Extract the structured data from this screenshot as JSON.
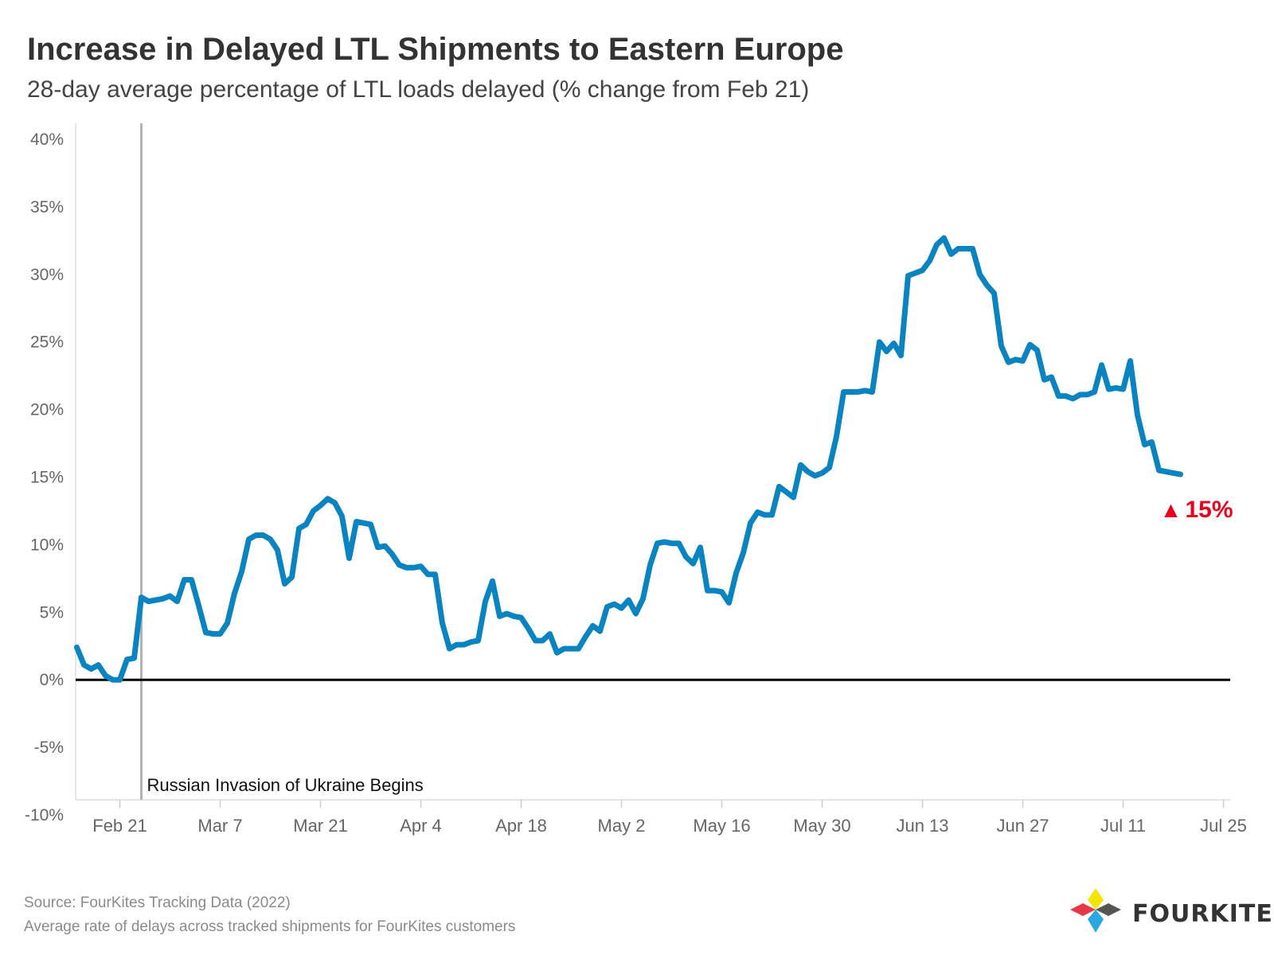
{
  "title": "Increase in Delayed LTL Shipments to Eastern Europe",
  "subtitle": "28-day average percentage of LTL loads delayed (% change from Feb 21)",
  "source_line": "Source: FourKites Tracking Data (2022)",
  "note_line": "Average rate of delays across tracked shipments for FourKites customers",
  "logo": {
    "text": "FOURKITES",
    "colors": [
      "#e63946",
      "#f2e600",
      "#555555",
      "#29a9e0"
    ]
  },
  "colors": {
    "line": "#0a84c1",
    "zero_line": "#000000",
    "event_line": "#b3b3b3",
    "callout": "#e8001c",
    "axis": "#dddddd"
  },
  "chart_data": {
    "type": "line",
    "title": "Increase in Delayed LTL Shipments to Eastern Europe",
    "subtitle": "28-day average percentage of LTL loads delayed (% change from Feb 21)",
    "x_axis_type": "date",
    "xlim": [
      "2022-02-17",
      "2022-07-26"
    ],
    "x_ticks": [
      "2022-02-21",
      "2022-03-07",
      "2022-03-21",
      "2022-04-04",
      "2022-04-18",
      "2022-05-02",
      "2022-05-16",
      "2022-05-30",
      "2022-06-13",
      "2022-06-27",
      "2022-07-11",
      "2022-07-25"
    ],
    "x_tick_labels": [
      "Feb 21",
      "Mar 7",
      "Mar 21",
      "Apr 4",
      "Apr 18",
      "May 2",
      "May 16",
      "May 30",
      "Jun 13",
      "Jun 27",
      "Jul 11",
      "Jul 25"
    ],
    "ylim": [
      -10,
      40
    ],
    "y_ticks": [
      -10,
      -5,
      0,
      5,
      10,
      15,
      20,
      25,
      30,
      35,
      40
    ],
    "y_tick_labels": [
      "-10%",
      "-5%",
      "0%",
      "5%",
      "10%",
      "15%",
      "20%",
      "25%",
      "30%",
      "35%",
      "40%"
    ],
    "grid": false,
    "series": [
      {
        "x": [
          "2022-02-15",
          "2022-02-16",
          "2022-02-17",
          "2022-02-18",
          "2022-02-19",
          "2022-02-20",
          "2022-02-21",
          "2022-02-22",
          "2022-02-23",
          "2022-02-24",
          "2022-02-25",
          "2022-02-26",
          "2022-02-27",
          "2022-02-28",
          "2022-03-01",
          "2022-03-02",
          "2022-03-03",
          "2022-03-04",
          "2022-03-05",
          "2022-03-06",
          "2022-03-07",
          "2022-03-08",
          "2022-03-09",
          "2022-03-10",
          "2022-03-11",
          "2022-03-12",
          "2022-03-13",
          "2022-03-14",
          "2022-03-15",
          "2022-03-16",
          "2022-03-17",
          "2022-03-18",
          "2022-03-19",
          "2022-03-20",
          "2022-03-21",
          "2022-03-22",
          "2022-03-23",
          "2022-03-24",
          "2022-03-25",
          "2022-03-26",
          "2022-03-27",
          "2022-03-28",
          "2022-03-29",
          "2022-03-30",
          "2022-03-31",
          "2022-04-01",
          "2022-04-02",
          "2022-04-03",
          "2022-04-04",
          "2022-04-05",
          "2022-04-06",
          "2022-04-07",
          "2022-04-08",
          "2022-04-09",
          "2022-04-10",
          "2022-04-11",
          "2022-04-12",
          "2022-04-13",
          "2022-04-14",
          "2022-04-15",
          "2022-04-16",
          "2022-04-17",
          "2022-04-18",
          "2022-04-19",
          "2022-04-20",
          "2022-04-21",
          "2022-04-22",
          "2022-04-23",
          "2022-04-24",
          "2022-04-25",
          "2022-04-26",
          "2022-04-27",
          "2022-04-28",
          "2022-04-29",
          "2022-04-30",
          "2022-05-01",
          "2022-05-02",
          "2022-05-03",
          "2022-05-04",
          "2022-05-05",
          "2022-05-06",
          "2022-05-07",
          "2022-05-08",
          "2022-05-09",
          "2022-05-10",
          "2022-05-11",
          "2022-05-12",
          "2022-05-13",
          "2022-05-14",
          "2022-05-15",
          "2022-05-16",
          "2022-05-17",
          "2022-05-18",
          "2022-05-19",
          "2022-05-20",
          "2022-05-21",
          "2022-05-22",
          "2022-05-23",
          "2022-05-24",
          "2022-05-25",
          "2022-05-26",
          "2022-05-27",
          "2022-05-28",
          "2022-05-29",
          "2022-05-30",
          "2022-05-31",
          "2022-06-01",
          "2022-06-02",
          "2022-06-03",
          "2022-06-04",
          "2022-06-05",
          "2022-06-06",
          "2022-06-07",
          "2022-06-08",
          "2022-06-09",
          "2022-06-10",
          "2022-06-11",
          "2022-06-12",
          "2022-06-13",
          "2022-06-14",
          "2022-06-15",
          "2022-06-16",
          "2022-06-17",
          "2022-06-18",
          "2022-06-19",
          "2022-06-20",
          "2022-06-21",
          "2022-06-22",
          "2022-06-23",
          "2022-06-24",
          "2022-06-25",
          "2022-06-26",
          "2022-06-27",
          "2022-06-28",
          "2022-06-29",
          "2022-06-30",
          "2022-07-01",
          "2022-07-02",
          "2022-07-03",
          "2022-07-04",
          "2022-07-05",
          "2022-07-06",
          "2022-07-07",
          "2022-07-08",
          "2022-07-09",
          "2022-07-10",
          "2022-07-11",
          "2022-07-12",
          "2022-07-13",
          "2022-07-14",
          "2022-07-15",
          "2022-07-16",
          "2022-07-17",
          "2022-07-18",
          "2022-07-19"
        ],
        "y": [
          2.4,
          1.1,
          0.8,
          1.1,
          0.3,
          0.0,
          0.0,
          1.5,
          1.6,
          6.1,
          5.8,
          5.9,
          6.0,
          6.2,
          5.8,
          7.4,
          7.4,
          5.5,
          3.5,
          3.4,
          3.4,
          4.2,
          6.4,
          8.0,
          10.4,
          10.7,
          10.7,
          10.4,
          9.6,
          7.1,
          7.6,
          11.2,
          11.5,
          12.5,
          12.9,
          13.4,
          13.1,
          12.1,
          9.0,
          11.7,
          11.6,
          11.5,
          9.8,
          9.9,
          9.3,
          8.5,
          8.3,
          8.3,
          8.4,
          7.8,
          7.8,
          4.2,
          2.3,
          2.6,
          2.6,
          2.8,
          2.9,
          5.8,
          7.3,
          4.7,
          4.9,
          4.7,
          4.6,
          3.8,
          2.9,
          2.9,
          3.4,
          2.0,
          2.3,
          2.3,
          2.3,
          3.2,
          4.0,
          3.6,
          5.4,
          5.6,
          5.3,
          5.9,
          4.9,
          6.0,
          8.5,
          10.1,
          10.2,
          10.1,
          10.1,
          9.1,
          8.6,
          9.8,
          6.6,
          6.6,
          6.5,
          5.7,
          7.9,
          9.4,
          11.6,
          12.4,
          12.2,
          12.2,
          14.3,
          13.9,
          13.5,
          15.9,
          15.4,
          15.1,
          15.3,
          15.7,
          18.0,
          21.3,
          21.3,
          21.3,
          21.4,
          21.3,
          25.0,
          24.3,
          24.9,
          24.0,
          29.9,
          30.1,
          30.3,
          31.0,
          32.2,
          32.7,
          31.5,
          31.9,
          31.9,
          31.9,
          30.0,
          29.2,
          28.6,
          24.7,
          23.5,
          23.7,
          23.6,
          24.8,
          24.4,
          22.2,
          22.4,
          21.0,
          21.0,
          20.8,
          21.1,
          21.1,
          21.3,
          23.3,
          21.5,
          21.6,
          21.5,
          23.6,
          19.6,
          17.4,
          17.6,
          15.5,
          15.4,
          15.3,
          15.2
        ]
      }
    ],
    "annotations": [
      {
        "type": "vertical_line",
        "x": "2022-02-24",
        "label": "Russian Invasion of Ukraine Begins"
      },
      {
        "type": "horizontal_line",
        "y": 0
      },
      {
        "type": "callout",
        "text": "15%",
        "symbol": "▲",
        "anchor": "end-of-series"
      }
    ]
  }
}
